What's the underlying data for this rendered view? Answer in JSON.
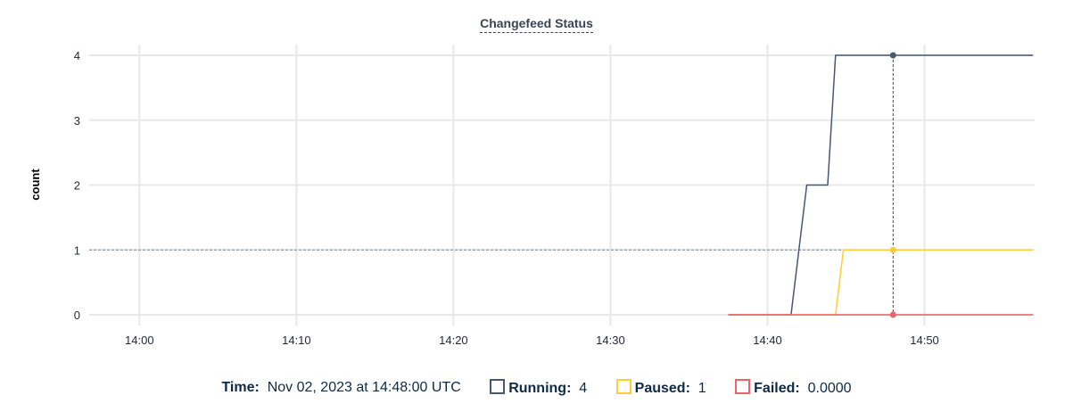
{
  "chart_data": {
    "type": "line",
    "title": "Changefeed Status",
    "ylabel": "count",
    "xlabel": "",
    "ylim": [
      0,
      4
    ],
    "yticks": [
      "0",
      "1",
      "2",
      "3",
      "4"
    ],
    "xlim": [
      "13:56:48",
      "14:56:54"
    ],
    "xticks": [
      "14:00",
      "14:10",
      "14:20",
      "14:30",
      "14:40",
      "14:50"
    ],
    "grid": true,
    "series": [
      {
        "name": "Running",
        "color": "#475872",
        "points": [
          [
            "14:37:30",
            0
          ],
          [
            "14:41:30",
            0
          ],
          [
            "14:42:30",
            2
          ],
          [
            "14:43:50",
            2
          ],
          [
            "14:44:20",
            4
          ],
          [
            "14:56:54",
            4
          ]
        ]
      },
      {
        "name": "Paused",
        "color": "#ffcd36",
        "points": [
          [
            "14:37:30",
            0
          ],
          [
            "14:44:20",
            0
          ],
          [
            "14:44:50",
            1
          ],
          [
            "14:56:54",
            1
          ]
        ]
      },
      {
        "name": "Failed",
        "color": "#f0616d",
        "points": [
          [
            "14:37:30",
            0
          ],
          [
            "14:56:54",
            0
          ]
        ]
      }
    ],
    "hover": {
      "time": "14:48:00",
      "y_reference": 1
    }
  },
  "legend": {
    "time_label": "Time:",
    "time_value": "Nov 02, 2023 at 14:48:00 UTC",
    "items": [
      {
        "label": "Running:",
        "value": "4",
        "color": "#475872"
      },
      {
        "label": "Paused:",
        "value": "1",
        "color": "#ffcd36"
      },
      {
        "label": "Failed:",
        "value": "0.0000",
        "color": "#f0616d"
      }
    ]
  }
}
